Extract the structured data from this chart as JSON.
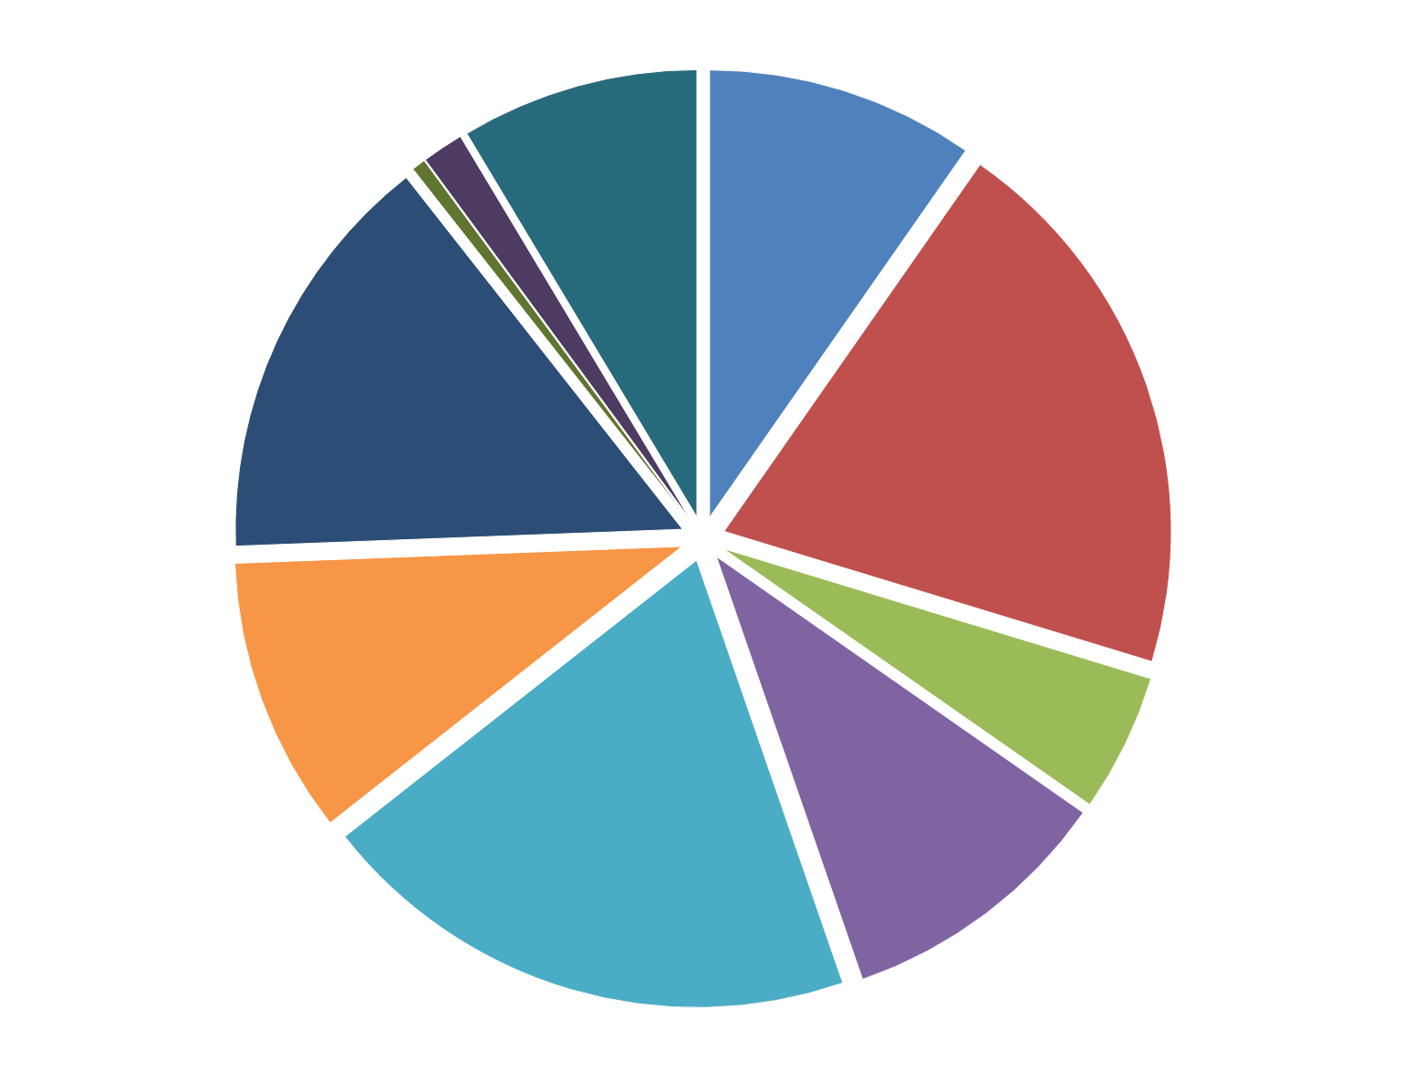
{
  "chart_data": {
    "type": "pie",
    "categories": [
      null,
      null,
      null,
      null,
      null,
      null,
      null,
      null,
      null,
      null
    ],
    "values": [
      9.7,
      20,
      5,
      10,
      19.7,
      10,
      15,
      0.5,
      1.5,
      8.6
    ],
    "colors": [
      "#4f81bd",
      "#c0504d",
      "#9bbb59",
      "#8064a2",
      "#4bacc6",
      "#f79646",
      "#2c4d75",
      "#5f7530",
      "#4d3b62",
      "#276a7c"
    ]
  }
}
